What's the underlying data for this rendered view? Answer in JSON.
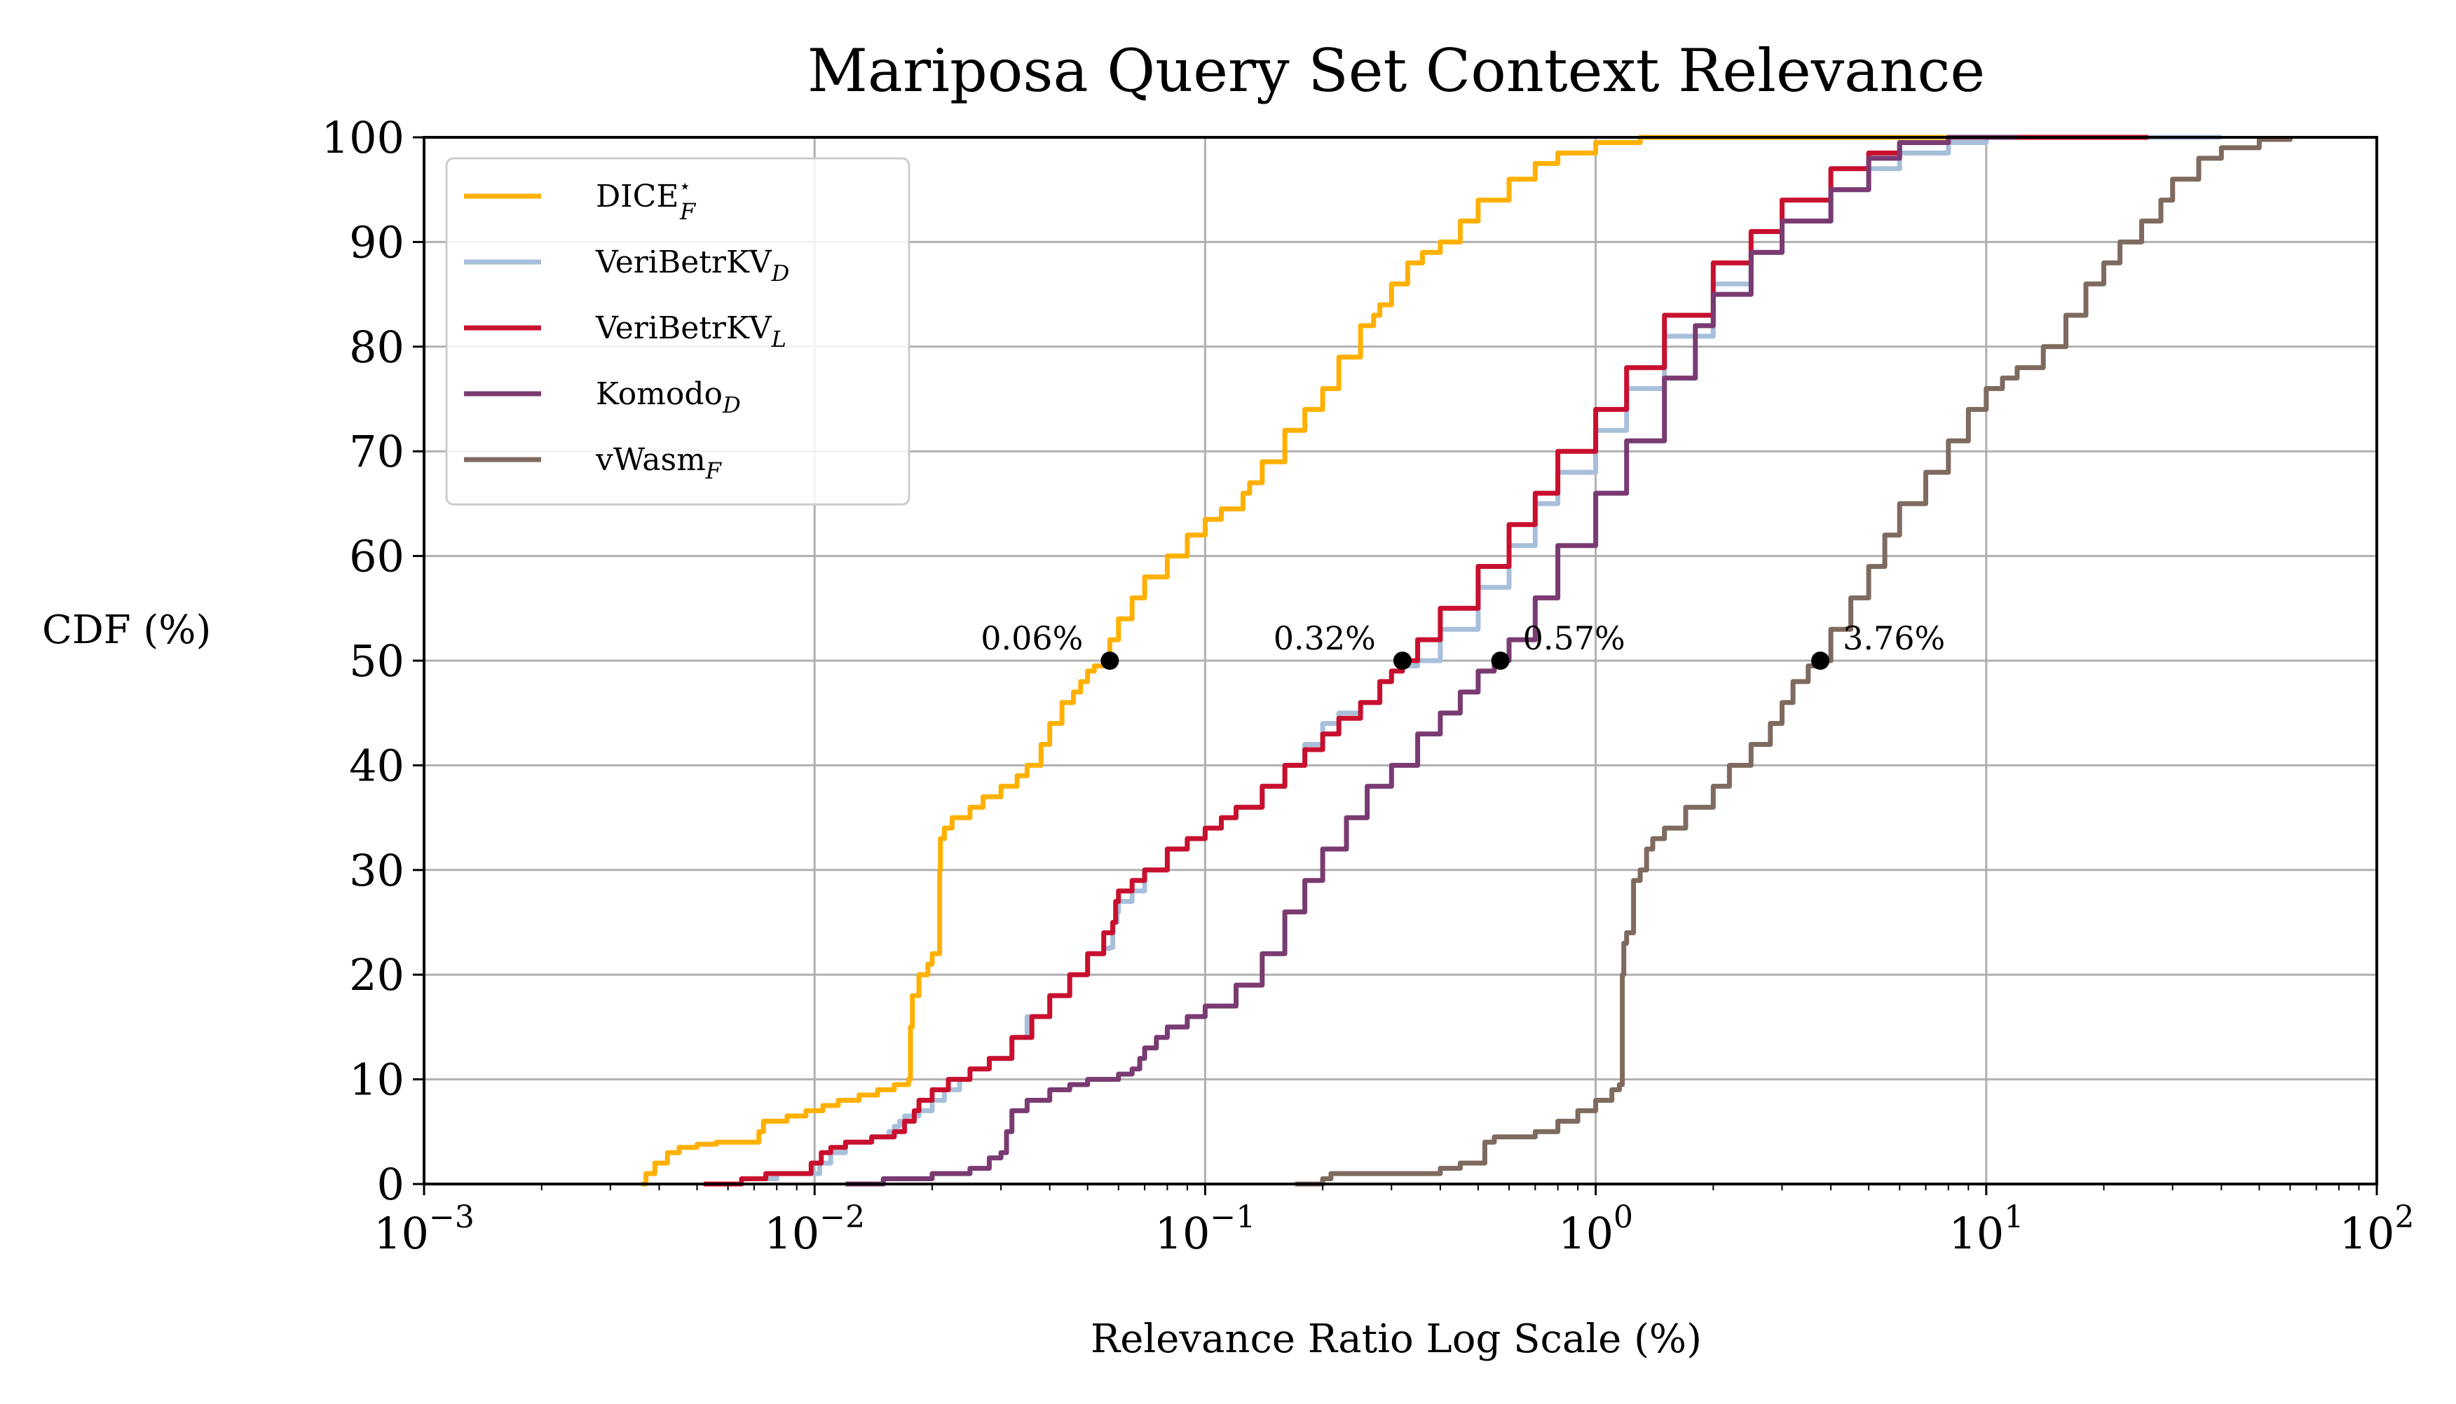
{
  "chart_data": {
    "type": "line",
    "title": "Mariposa Query Set Context Relevance",
    "xlabel": "Relevance Ratio Log Scale (%)",
    "ylabel": "CDF (%)",
    "xscale": "log",
    "xlim": [
      0.001,
      100
    ],
    "ylim": [
      0,
      100
    ],
    "grid": true,
    "legend_position": "top-left",
    "x_ticks": [
      {
        "value": 0.001,
        "base": "10",
        "exp": "−3"
      },
      {
        "value": 0.01,
        "base": "10",
        "exp": "−2"
      },
      {
        "value": 0.1,
        "base": "10",
        "exp": "−1"
      },
      {
        "value": 1,
        "base": "10",
        "exp": "0"
      },
      {
        "value": 10,
        "base": "10",
        "exp": "1"
      },
      {
        "value": 100,
        "base": "10",
        "exp": "2"
      }
    ],
    "y_ticks": [
      "0",
      "10",
      "20",
      "30",
      "40",
      "50",
      "60",
      "70",
      "80",
      "90",
      "100"
    ],
    "series": [
      {
        "name": "DICE",
        "name_sup": "⋆",
        "name_sub": "F",
        "color": "#FFB000",
        "x": [
          0.0036,
          0.0037,
          0.0039,
          0.0042,
          0.0045,
          0.005,
          0.0056,
          0.0065,
          0.0072,
          0.0074,
          0.0085,
          0.0095,
          0.0105,
          0.0115,
          0.013,
          0.0145,
          0.016,
          0.0174,
          0.0176,
          0.0178,
          0.0185,
          0.0195,
          0.02,
          0.0202,
          0.0209,
          0.021,
          0.0215,
          0.0225,
          0.025,
          0.027,
          0.03,
          0.033,
          0.035,
          0.038,
          0.04,
          0.043,
          0.046,
          0.048,
          0.05,
          0.052,
          0.055,
          0.057,
          0.06,
          0.065,
          0.07,
          0.08,
          0.09,
          0.1,
          0.11,
          0.125,
          0.13,
          0.14,
          0.16,
          0.18,
          0.2,
          0.22,
          0.25,
          0.27,
          0.28,
          0.3,
          0.33,
          0.36,
          0.4,
          0.45,
          0.5,
          0.6,
          0.7,
          0.8,
          1.0,
          1.3,
          2.0,
          5.0,
          10.0,
          30.0
        ],
        "y": [
          0,
          1,
          2,
          3,
          3.5,
          3.8,
          4,
          4,
          5,
          6,
          6.5,
          7,
          7.5,
          8,
          8.5,
          9,
          9.5,
          10,
          15,
          18,
          20,
          21,
          22,
          22,
          30,
          33,
          34,
          35,
          36,
          37,
          38,
          39,
          40,
          42,
          44,
          46,
          47,
          48,
          49,
          49.5,
          50,
          52,
          54,
          56,
          58,
          60,
          62,
          63.5,
          64.5,
          66,
          67,
          69,
          72,
          74,
          76,
          79,
          82,
          83,
          84,
          86,
          88,
          89,
          90,
          92,
          94,
          96,
          97.5,
          98.5,
          99.5,
          100,
          100,
          100,
          100,
          100
        ]
      },
      {
        "name": "VeriBetrKV",
        "name_sub": "D",
        "color": "#A8BFDB",
        "x": [
          0.0055,
          0.0065,
          0.008,
          0.0098,
          0.0103,
          0.011,
          0.012,
          0.014,
          0.0155,
          0.016,
          0.0165,
          0.017,
          0.0185,
          0.02,
          0.0215,
          0.0235,
          0.025,
          0.028,
          0.032,
          0.035,
          0.04,
          0.045,
          0.05,
          0.055,
          0.057,
          0.058,
          0.0595,
          0.06,
          0.065,
          0.07,
          0.08,
          0.09,
          0.1,
          0.11,
          0.12,
          0.14,
          0.16,
          0.18,
          0.2,
          0.22,
          0.25,
          0.28,
          0.3,
          0.32,
          0.35,
          0.4,
          0.5,
          0.6,
          0.7,
          0.8,
          1.0,
          1.2,
          1.5,
          2.0,
          2.5,
          3.0,
          4.0,
          5.0,
          6.0,
          8.0,
          10.0,
          20.0,
          40.0
        ],
        "y": [
          0,
          0.5,
          1,
          1,
          2,
          3,
          4,
          4.5,
          5,
          5.5,
          6,
          6.5,
          7,
          8,
          9,
          10,
          11,
          12,
          14,
          16,
          18,
          20,
          22,
          22.5,
          22.6,
          25,
          26,
          27,
          28,
          30,
          32,
          33,
          34,
          35,
          36,
          38,
          40,
          42,
          44,
          45,
          46,
          48,
          49,
          49.5,
          50,
          53,
          57,
          61,
          65,
          68,
          72,
          76,
          81,
          86,
          89,
          92,
          95,
          97,
          98.5,
          99.5,
          100,
          100,
          100
        ]
      },
      {
        "name": "VeriBetrKV",
        "name_sub": "L",
        "color": "#C8102E",
        "x": [
          0.0052,
          0.0065,
          0.0075,
          0.009,
          0.0098,
          0.0104,
          0.011,
          0.012,
          0.014,
          0.016,
          0.017,
          0.018,
          0.0185,
          0.02,
          0.022,
          0.025,
          0.028,
          0.032,
          0.036,
          0.04,
          0.045,
          0.05,
          0.055,
          0.058,
          0.059,
          0.06,
          0.065,
          0.07,
          0.08,
          0.09,
          0.1,
          0.11,
          0.12,
          0.14,
          0.16,
          0.18,
          0.2,
          0.22,
          0.25,
          0.28,
          0.3,
          0.32,
          0.35,
          0.4,
          0.5,
          0.6,
          0.7,
          0.8,
          1.0,
          1.2,
          1.5,
          2.0,
          2.5,
          3.0,
          4.0,
          5.0,
          6.0,
          8.0,
          10.0,
          26.0
        ],
        "y": [
          0,
          0.5,
          1,
          1,
          2,
          3,
          3.5,
          4,
          4.5,
          5,
          6,
          7,
          8,
          9,
          10,
          11,
          12,
          14,
          16,
          18,
          20,
          22,
          24,
          25,
          27,
          28,
          29,
          30,
          32,
          33,
          34,
          35,
          36,
          38,
          40,
          41.5,
          43,
          44.5,
          46,
          48,
          49,
          50,
          52,
          55,
          59,
          63,
          66,
          70,
          74,
          78,
          83,
          88,
          91,
          94,
          97,
          98.5,
          99.5,
          100,
          100,
          100
        ]
      },
      {
        "name": "Komodo",
        "name_sub": "D",
        "color": "#7A3A72",
        "x": [
          0.012,
          0.015,
          0.02,
          0.025,
          0.028,
          0.03,
          0.031,
          0.032,
          0.035,
          0.04,
          0.045,
          0.05,
          0.06,
          0.065,
          0.068,
          0.07,
          0.075,
          0.08,
          0.09,
          0.1,
          0.12,
          0.14,
          0.16,
          0.18,
          0.2,
          0.23,
          0.26,
          0.3,
          0.35,
          0.4,
          0.45,
          0.5,
          0.55,
          0.57,
          0.6,
          0.7,
          0.8,
          1.0,
          1.2,
          1.5,
          1.8,
          2.0,
          2.5,
          3.0,
          4.0,
          5.0,
          6.0,
          8.0,
          12.0
        ],
        "y": [
          0,
          0.5,
          1,
          1.5,
          2.5,
          3,
          5,
          7,
          8,
          9,
          9.5,
          10,
          10.5,
          11,
          12,
          13,
          14,
          15,
          16,
          17,
          19,
          22,
          26,
          29,
          32,
          35,
          38,
          40,
          43,
          45,
          47,
          49,
          49.8,
          50,
          52,
          56,
          61,
          66,
          71,
          77,
          82,
          85,
          89,
          92,
          95,
          98,
          99.5,
          100,
          100
        ]
      },
      {
        "name": "vWasm",
        "name_sub": "F",
        "color": "#7F6A5F",
        "x": [
          0.17,
          0.2,
          0.21,
          0.25,
          0.3,
          0.35,
          0.4,
          0.45,
          0.5,
          0.52,
          0.55,
          0.6,
          0.7,
          0.8,
          0.9,
          1.0,
          1.1,
          1.15,
          1.17,
          1.18,
          1.2,
          1.25,
          1.3,
          1.35,
          1.4,
          1.5,
          1.7,
          2.0,
          2.2,
          2.5,
          2.8,
          3.0,
          3.2,
          3.5,
          3.76,
          4.0,
          4.5,
          5.0,
          5.5,
          6.0,
          7.0,
          8.0,
          9.0,
          10.0,
          11.0,
          12.0,
          14.0,
          16.0,
          18.0,
          20.0,
          22.0,
          25.0,
          28.0,
          30.0,
          35.0,
          40.0,
          50.0,
          60.0
        ],
        "y": [
          0,
          0.5,
          1,
          1,
          1,
          1,
          1.5,
          2,
          2,
          4,
          4.5,
          4.5,
          5,
          6,
          7,
          8,
          9,
          9.5,
          20,
          23,
          24,
          29,
          30,
          32,
          33,
          34,
          36,
          38,
          40,
          42,
          44,
          46,
          48,
          49.5,
          50,
          53,
          56,
          59,
          62,
          65,
          68,
          71,
          74,
          76,
          77,
          78,
          80,
          83,
          86,
          88,
          90,
          92,
          94,
          96,
          98,
          99,
          99.8,
          100
        ]
      }
    ],
    "annotations": [
      {
        "label": "0.06%",
        "x": 0.057,
        "y": 50,
        "side": "left"
      },
      {
        "label": "0.32%",
        "x": 0.32,
        "y": 50,
        "side": "left"
      },
      {
        "label": "0.57%",
        "x": 0.57,
        "y": 50,
        "side": "right"
      },
      {
        "label": "3.76%",
        "x": 3.76,
        "y": 50,
        "side": "right"
      }
    ]
  }
}
